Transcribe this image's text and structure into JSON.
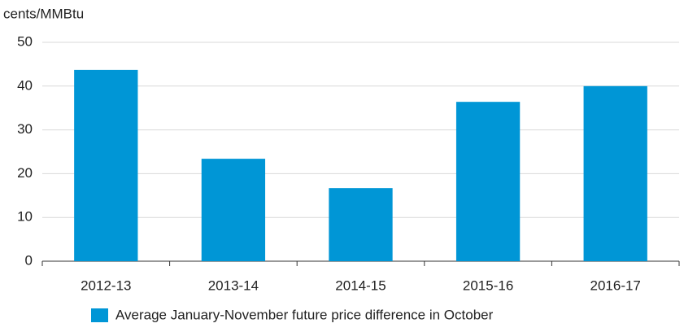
{
  "chart_data": {
    "type": "bar",
    "y_axis_label": "cents/MMBtu",
    "categories": [
      "2012-13",
      "2013-14",
      "2014-15",
      "2015-16",
      "2016-17"
    ],
    "series": [
      {
        "name": "Average January-November future price difference in October",
        "color": "#0096d6",
        "values": [
          43.7,
          23.4,
          16.7,
          36.4,
          40.0
        ]
      }
    ],
    "ylim": [
      0,
      50
    ],
    "yticks": [
      0,
      10,
      20,
      30,
      40,
      50
    ],
    "grid": true
  }
}
